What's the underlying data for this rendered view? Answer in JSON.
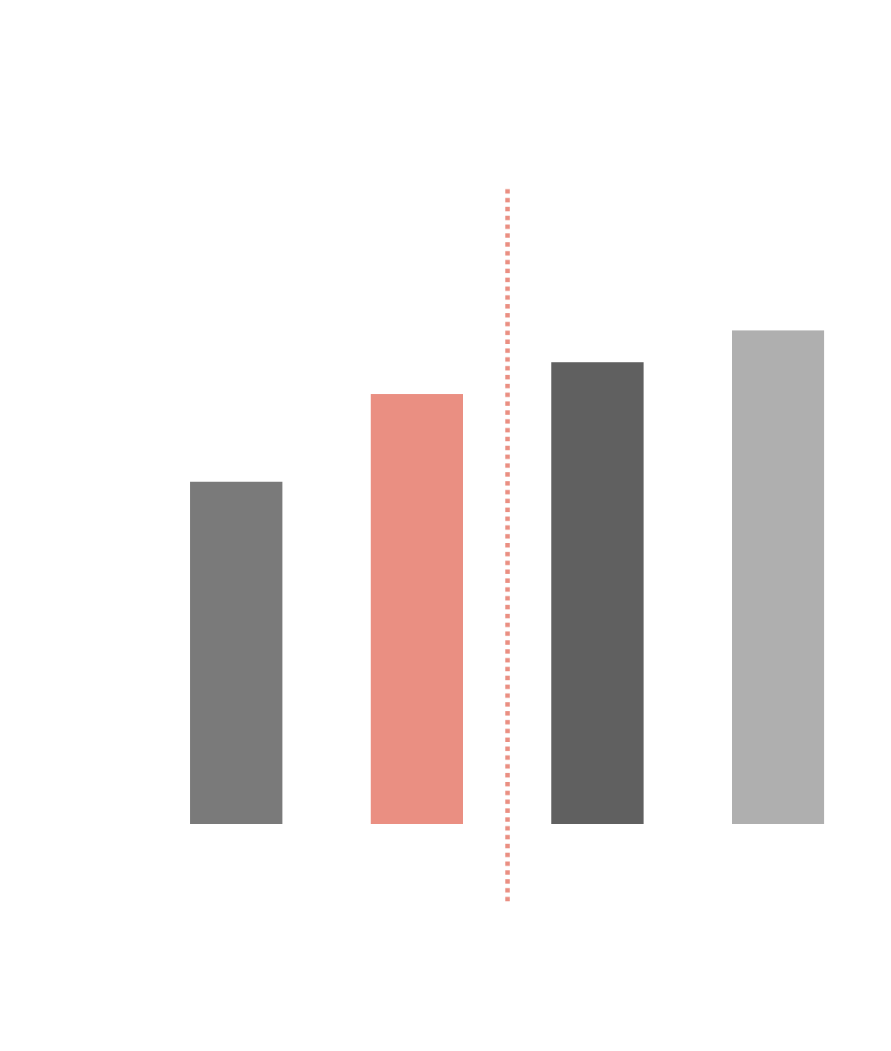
{
  "chart_data": {
    "type": "bar",
    "categories": [
      null,
      null,
      null,
      null
    ],
    "values": [
      43,
      54,
      58,
      62
    ],
    "colors": [
      "#7a7a7a",
      "#ea8f82",
      "#606060",
      "#afafaf"
    ],
    "ylim": [
      0,
      80
    ],
    "yticks": [
      0,
      80
    ],
    "grid": false,
    "tick_labels": false
  }
}
